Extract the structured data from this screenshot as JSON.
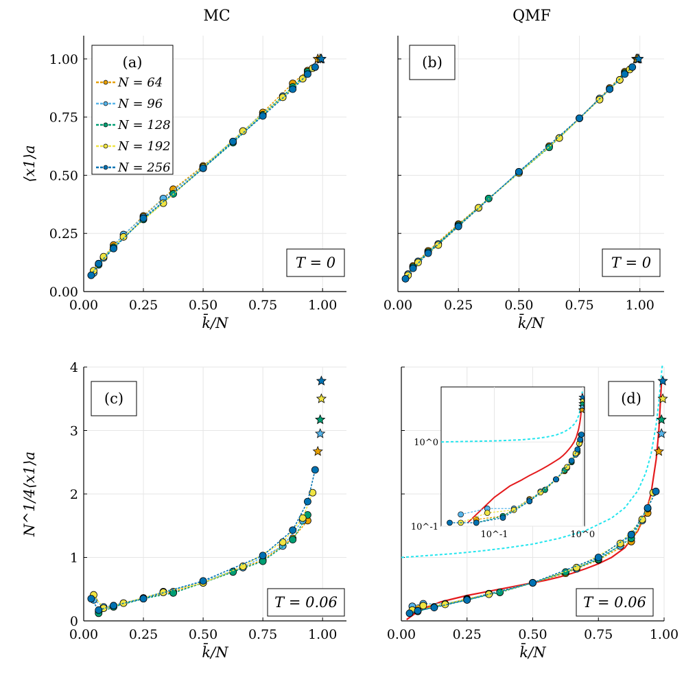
{
  "column_titles": [
    "MC",
    "QMF"
  ],
  "colors": {
    "N64": "#e69f00",
    "N96": "#56b4e9",
    "N128": "#009e73",
    "N192": "#f0e442",
    "N256": "#0072b2",
    "theory": "#e41a1c",
    "bound": "#22e5ee"
  },
  "legend": {
    "label": "(a)",
    "entries": [
      "N = 64",
      "N = 96",
      "N = 128",
      "N = 192",
      "N = 256"
    ]
  },
  "chart_data": [
    {
      "id": "a",
      "panel_label": "(a)",
      "type": "line",
      "title": "",
      "xlabel": "k̄/N",
      "ylabel": "⟨x1⟩a",
      "xlim": [
        0,
        1.1
      ],
      "ylim": [
        0,
        1.1
      ],
      "xticks": [
        "0.00",
        "0.25",
        "0.50",
        "0.75",
        "1.00"
      ],
      "yticks": [
        "0.00",
        "0.25",
        "0.50",
        "0.75",
        "1.00"
      ],
      "temperature_label": "T = 0",
      "series": [
        {
          "name": "N = 64",
          "x": [
            0.0625,
            0.125,
            0.25,
            0.375,
            0.5,
            0.625,
            0.75,
            0.875,
            0.9375
          ],
          "y": [
            0.12,
            0.2,
            0.325,
            0.44,
            0.54,
            0.645,
            0.77,
            0.895,
            0.95
          ],
          "star": [
            0.98,
            1.0
          ]
        },
        {
          "name": "N = 96",
          "x": [
            0.0417,
            0.0833,
            0.1667,
            0.25,
            0.3333,
            0.5,
            0.6667,
            0.8333,
            0.9167
          ],
          "y": [
            0.08,
            0.145,
            0.245,
            0.32,
            0.4,
            0.535,
            0.69,
            0.84,
            0.915
          ],
          "star": [
            0.99,
            1.0
          ]
        },
        {
          "name": "N = 128",
          "x": [
            0.0625,
            0.125,
            0.25,
            0.375,
            0.5,
            0.625,
            0.75,
            0.875,
            0.9375,
            0.96875
          ],
          "y": [
            0.115,
            0.19,
            0.31,
            0.42,
            0.53,
            0.64,
            0.76,
            0.88,
            0.945,
            0.965
          ],
          "star": [
            0.99,
            1.0
          ]
        },
        {
          "name": "N = 192",
          "x": [
            0.0417,
            0.0833,
            0.1667,
            0.3333,
            0.5,
            0.6667,
            0.8333,
            0.9167,
            0.9583
          ],
          "y": [
            0.09,
            0.15,
            0.235,
            0.38,
            0.535,
            0.69,
            0.835,
            0.915,
            0.96
          ],
          "star": [
            0.99,
            1.0
          ]
        },
        {
          "name": "N = 256",
          "x": [
            0.03125,
            0.0625,
            0.125,
            0.25,
            0.5,
            0.625,
            0.75,
            0.875,
            0.9375,
            0.96875
          ],
          "y": [
            0.07,
            0.12,
            0.185,
            0.315,
            0.53,
            0.645,
            0.755,
            0.87,
            0.935,
            0.965
          ],
          "star": [
            0.995,
            1.0
          ]
        }
      ]
    },
    {
      "id": "b",
      "panel_label": "(b)",
      "type": "line",
      "title": "",
      "xlabel": "k̄/N",
      "ylabel": "",
      "xlim": [
        0,
        1.1
      ],
      "ylim": [
        0,
        1.1
      ],
      "xticks": [
        "0.00",
        "0.25",
        "0.50",
        "0.75",
        "1.00"
      ],
      "yticks": [],
      "temperature_label": "T = 0",
      "series": [
        {
          "name": "N = 64",
          "x": [
            0.0625,
            0.125,
            0.25,
            0.375,
            0.5,
            0.625,
            0.75,
            0.875,
            0.9375
          ],
          "y": [
            0.11,
            0.175,
            0.29,
            0.4,
            0.51,
            0.625,
            0.745,
            0.875,
            0.945
          ],
          "star": [
            0.985,
            1.0
          ]
        },
        {
          "name": "N = 96",
          "x": [
            0.0417,
            0.0833,
            0.1667,
            0.25,
            0.3333,
            0.5,
            0.6667,
            0.8333,
            0.9167
          ],
          "y": [
            0.075,
            0.13,
            0.205,
            0.285,
            0.36,
            0.515,
            0.66,
            0.83,
            0.91
          ],
          "star": [
            0.99,
            1.0
          ]
        },
        {
          "name": "N = 128",
          "x": [
            0.0625,
            0.125,
            0.25,
            0.375,
            0.5,
            0.625,
            0.75,
            0.875,
            0.9375
          ],
          "y": [
            0.105,
            0.17,
            0.285,
            0.4,
            0.51,
            0.62,
            0.745,
            0.87,
            0.94
          ],
          "star": [
            0.99,
            1.0
          ]
        },
        {
          "name": "N = 192",
          "x": [
            0.0417,
            0.0833,
            0.1667,
            0.3333,
            0.5,
            0.6667,
            0.8333,
            0.9167,
            0.9583
          ],
          "y": [
            0.07,
            0.125,
            0.2,
            0.36,
            0.51,
            0.66,
            0.825,
            0.91,
            0.955
          ],
          "star": [
            0.99,
            1.0
          ]
        },
        {
          "name": "N = 256",
          "x": [
            0.03125,
            0.0625,
            0.125,
            0.25,
            0.5,
            0.75,
            0.875,
            0.9375,
            0.96875
          ],
          "y": [
            0.055,
            0.1,
            0.165,
            0.28,
            0.515,
            0.745,
            0.87,
            0.935,
            0.965
          ],
          "star": [
            0.995,
            1.0
          ]
        }
      ]
    },
    {
      "id": "c",
      "panel_label": "(c)",
      "type": "line",
      "title": "",
      "xlabel": "k̄/N",
      "ylabel": "N^1/4⟨x1⟩a",
      "xlim": [
        0,
        1.1
      ],
      "ylim": [
        0,
        4
      ],
      "xticks": [
        "0.00",
        "0.25",
        "0.50",
        "0.75",
        "1.00"
      ],
      "yticks": [
        "0",
        "1",
        "2",
        "3",
        "4"
      ],
      "temperature_label": "T = 0.06",
      "series": [
        {
          "name": "N = 64",
          "x": [
            0.0625,
            0.125,
            0.25,
            0.375,
            0.5,
            0.625,
            0.75,
            0.875,
            0.9375
          ],
          "y": [
            0.15,
            0.24,
            0.36,
            0.46,
            0.6,
            0.78,
            0.96,
            1.3,
            1.58
          ],
          "star": [
            0.98,
            2.67
          ]
        },
        {
          "name": "N = 96",
          "x": [
            0.0417,
            0.0833,
            0.1667,
            0.25,
            0.3333,
            0.5,
            0.6667,
            0.8333,
            0.9167
          ],
          "y": [
            0.33,
            0.22,
            0.28,
            0.36,
            0.46,
            0.62,
            0.84,
            1.18,
            1.58
          ],
          "star": [
            0.99,
            2.95
          ]
        },
        {
          "name": "N = 128",
          "x": [
            0.0625,
            0.125,
            0.25,
            0.375,
            0.5,
            0.625,
            0.75,
            0.875,
            0.9375
          ],
          "y": [
            0.12,
            0.22,
            0.35,
            0.44,
            0.6,
            0.77,
            0.94,
            1.28,
            1.67
          ],
          "star": [
            0.99,
            3.17
          ]
        },
        {
          "name": "N = 192",
          "x": [
            0.0417,
            0.0833,
            0.1667,
            0.3333,
            0.5,
            0.6667,
            0.8333,
            0.9167,
            0.9583
          ],
          "y": [
            0.41,
            0.2,
            0.28,
            0.45,
            0.6,
            0.86,
            1.24,
            1.62,
            2.02
          ],
          "star": [
            0.995,
            3.5
          ]
        },
        {
          "name": "N = 256",
          "x": [
            0.03125,
            0.0625,
            0.125,
            0.25,
            0.5,
            0.75,
            0.875,
            0.9375,
            0.96875
          ],
          "y": [
            0.35,
            0.17,
            0.24,
            0.35,
            0.63,
            1.03,
            1.43,
            1.88,
            2.38
          ],
          "star": [
            0.995,
            3.78
          ]
        }
      ]
    },
    {
      "id": "d",
      "panel_label": "(d)",
      "type": "line",
      "title": "",
      "xlabel": "k̄/N",
      "ylabel": "",
      "xlim": [
        0,
        1.0
      ],
      "ylim": [
        0,
        4
      ],
      "xticks": [
        "0.00",
        "0.25",
        "0.50",
        "0.75",
        "1.00"
      ],
      "yticks": [],
      "temperature_label": "T = 0.06",
      "series": [
        {
          "name": "N = 64",
          "x": [
            0.0625,
            0.125,
            0.25,
            0.375,
            0.5,
            0.625,
            0.75,
            0.875,
            0.9375
          ],
          "y": [
            0.2,
            0.22,
            0.35,
            0.45,
            0.6,
            0.75,
            0.96,
            1.25,
            1.7
          ],
          "star": [
            0.98,
            2.67
          ]
        },
        {
          "name": "N = 96",
          "x": [
            0.0417,
            0.0833,
            0.1667,
            0.25,
            0.3333,
            0.5,
            0.6667,
            0.8333,
            0.9167
          ],
          "y": [
            0.23,
            0.27,
            0.27,
            0.34,
            0.43,
            0.6,
            0.82,
            1.18,
            1.58
          ],
          "star": [
            0.99,
            2.95
          ]
        },
        {
          "name": "N = 128",
          "x": [
            0.0625,
            0.125,
            0.25,
            0.375,
            0.5,
            0.625,
            0.75,
            0.875,
            0.9375
          ],
          "y": [
            0.15,
            0.22,
            0.33,
            0.45,
            0.6,
            0.77,
            0.97,
            1.3,
            1.77
          ],
          "star": [
            0.99,
            3.17
          ]
        },
        {
          "name": "N = 192",
          "x": [
            0.0417,
            0.0833,
            0.1667,
            0.3333,
            0.5,
            0.6667,
            0.8333,
            0.9167,
            0.9583
          ],
          "y": [
            0.17,
            0.24,
            0.26,
            0.42,
            0.6,
            0.84,
            1.22,
            1.6,
            2.02
          ],
          "star": [
            0.995,
            3.5
          ]
        },
        {
          "name": "N = 256",
          "x": [
            0.03125,
            0.0625,
            0.125,
            0.25,
            0.5,
            0.75,
            0.875,
            0.9375,
            0.96875
          ],
          "y": [
            0.12,
            0.16,
            0.21,
            0.33,
            0.6,
            1.0,
            1.36,
            1.78,
            2.04
          ],
          "star": [
            0.995,
            3.78
          ]
        }
      ],
      "theory_curve": {
        "x": [
          0.02,
          0.05,
          0.1,
          0.15,
          0.2,
          0.25,
          0.3,
          0.35,
          0.4,
          0.45,
          0.5,
          0.55,
          0.6,
          0.65,
          0.7,
          0.75,
          0.8,
          0.85,
          0.9,
          0.93,
          0.95,
          0.97,
          0.98,
          0.99
        ],
        "y": [
          0.02,
          0.11,
          0.22,
          0.3,
          0.35,
          0.4,
          0.44,
          0.48,
          0.52,
          0.56,
          0.6,
          0.64,
          0.69,
          0.75,
          0.82,
          0.9,
          1.0,
          1.15,
          1.42,
          1.7,
          2.0,
          2.55,
          3.0,
          3.75
        ]
      },
      "bound_curve": {
        "x": [
          0.0,
          0.1,
          0.2,
          0.3,
          0.4,
          0.5,
          0.6,
          0.7,
          0.8,
          0.85,
          0.9,
          0.93,
          0.95,
          0.97,
          0.98,
          0.99,
          0.995
        ],
        "y": [
          1.0,
          1.03,
          1.06,
          1.1,
          1.15,
          1.21,
          1.3,
          1.42,
          1.62,
          1.78,
          2.05,
          2.33,
          2.62,
          3.1,
          3.45,
          3.9,
          4.1
        ]
      },
      "inset": {
        "type": "line",
        "xscale": "log",
        "yscale": "log",
        "xlim": [
          0.025,
          1.05
        ],
        "ylim": [
          0.1,
          4.5
        ],
        "xticks": [
          "10^-1",
          "10^0"
        ],
        "yticks": [
          "10^-1",
          "10^0"
        ]
      }
    }
  ]
}
